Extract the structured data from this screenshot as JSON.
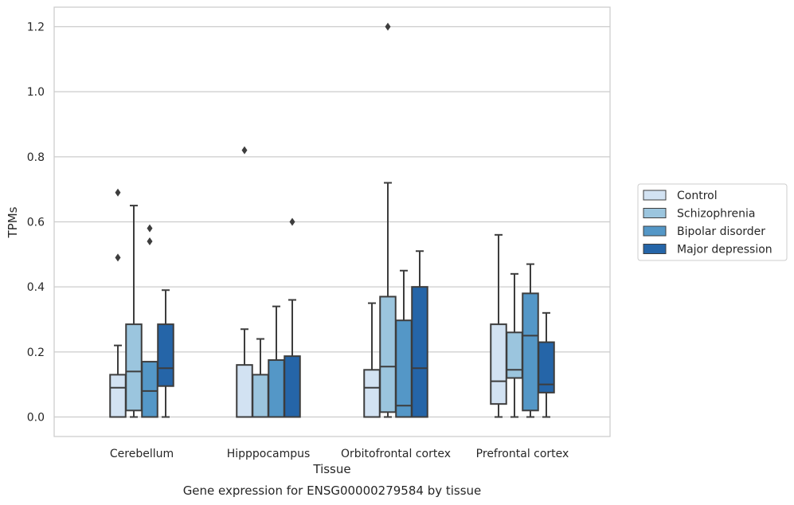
{
  "chart_data": {
    "type": "box",
    "title": "Gene expression for ENSG00000279584 by tissue",
    "xlabel": "Tissue",
    "ylabel": "TPMs",
    "ylim": [
      -0.06,
      1.26
    ],
    "yticks": [
      0.0,
      0.2,
      0.4,
      0.6,
      0.8,
      1.0,
      1.2
    ],
    "ytick_labels": [
      "0.0",
      "0.2",
      "0.4",
      "0.6",
      "0.8",
      "1.0",
      "1.2"
    ],
    "grid": "y",
    "legend_position": "right-center",
    "categories": [
      "Cerebellum",
      "Hipppocampus",
      "Orbitofrontal cortex",
      "Prefrontal cortex"
    ],
    "series": [
      {
        "name": "Control",
        "color": "#d2e2f2",
        "boxes": [
          {
            "whislo": 0.0,
            "q1": 0.0,
            "med": 0.09,
            "q3": 0.13,
            "whishi": 0.22,
            "fliers": [
              0.49,
              0.69
            ]
          },
          {
            "whislo": 0.0,
            "q1": 0.0,
            "med": 0.0,
            "q3": 0.16,
            "whishi": 0.27,
            "fliers": [
              0.82
            ]
          },
          {
            "whislo": 0.0,
            "q1": 0.0,
            "med": 0.09,
            "q3": 0.145,
            "whishi": 0.35,
            "fliers": []
          },
          {
            "whislo": 0.0,
            "q1": 0.04,
            "med": 0.11,
            "q3": 0.285,
            "whishi": 0.56,
            "fliers": []
          }
        ]
      },
      {
        "name": "Schizophrenia",
        "color": "#9bc5de",
        "boxes": [
          {
            "whislo": 0.0,
            "q1": 0.02,
            "med": 0.14,
            "q3": 0.285,
            "whishi": 0.65,
            "fliers": []
          },
          {
            "whislo": 0.0,
            "q1": 0.0,
            "med": 0.0,
            "q3": 0.13,
            "whishi": 0.24,
            "fliers": []
          },
          {
            "whislo": 0.0,
            "q1": 0.015,
            "med": 0.155,
            "q3": 0.37,
            "whishi": 0.72,
            "fliers": [
              1.2
            ]
          },
          {
            "whislo": 0.0,
            "q1": 0.12,
            "med": 0.145,
            "q3": 0.26,
            "whishi": 0.44,
            "fliers": []
          }
        ]
      },
      {
        "name": "Bipolar disorder",
        "color": "#5497c7",
        "boxes": [
          {
            "whislo": 0.0,
            "q1": 0.0,
            "med": 0.08,
            "q3": 0.17,
            "whishi": 0.17,
            "fliers": [
              0.54,
              0.58
            ]
          },
          {
            "whislo": 0.0,
            "q1": 0.0,
            "med": 0.0,
            "q3": 0.175,
            "whishi": 0.34,
            "fliers": []
          },
          {
            "whislo": 0.0,
            "q1": 0.0,
            "med": 0.035,
            "q3": 0.297,
            "whishi": 0.45,
            "fliers": []
          },
          {
            "whislo": 0.0,
            "q1": 0.02,
            "med": 0.25,
            "q3": 0.38,
            "whishi": 0.47,
            "fliers": []
          }
        ]
      },
      {
        "name": "Major depression",
        "color": "#2565a8",
        "boxes": [
          {
            "whislo": 0.0,
            "q1": 0.095,
            "med": 0.15,
            "q3": 0.285,
            "whishi": 0.39,
            "fliers": []
          },
          {
            "whislo": 0.0,
            "q1": 0.0,
            "med": 0.0,
            "q3": 0.187,
            "whishi": 0.36,
            "fliers": [
              0.6
            ]
          },
          {
            "whislo": 0.0,
            "q1": 0.0,
            "med": 0.15,
            "q3": 0.4,
            "whishi": 0.51,
            "fliers": []
          },
          {
            "whislo": 0.0,
            "q1": 0.075,
            "med": 0.1,
            "q3": 0.23,
            "whishi": 0.32,
            "fliers": []
          }
        ]
      }
    ]
  }
}
